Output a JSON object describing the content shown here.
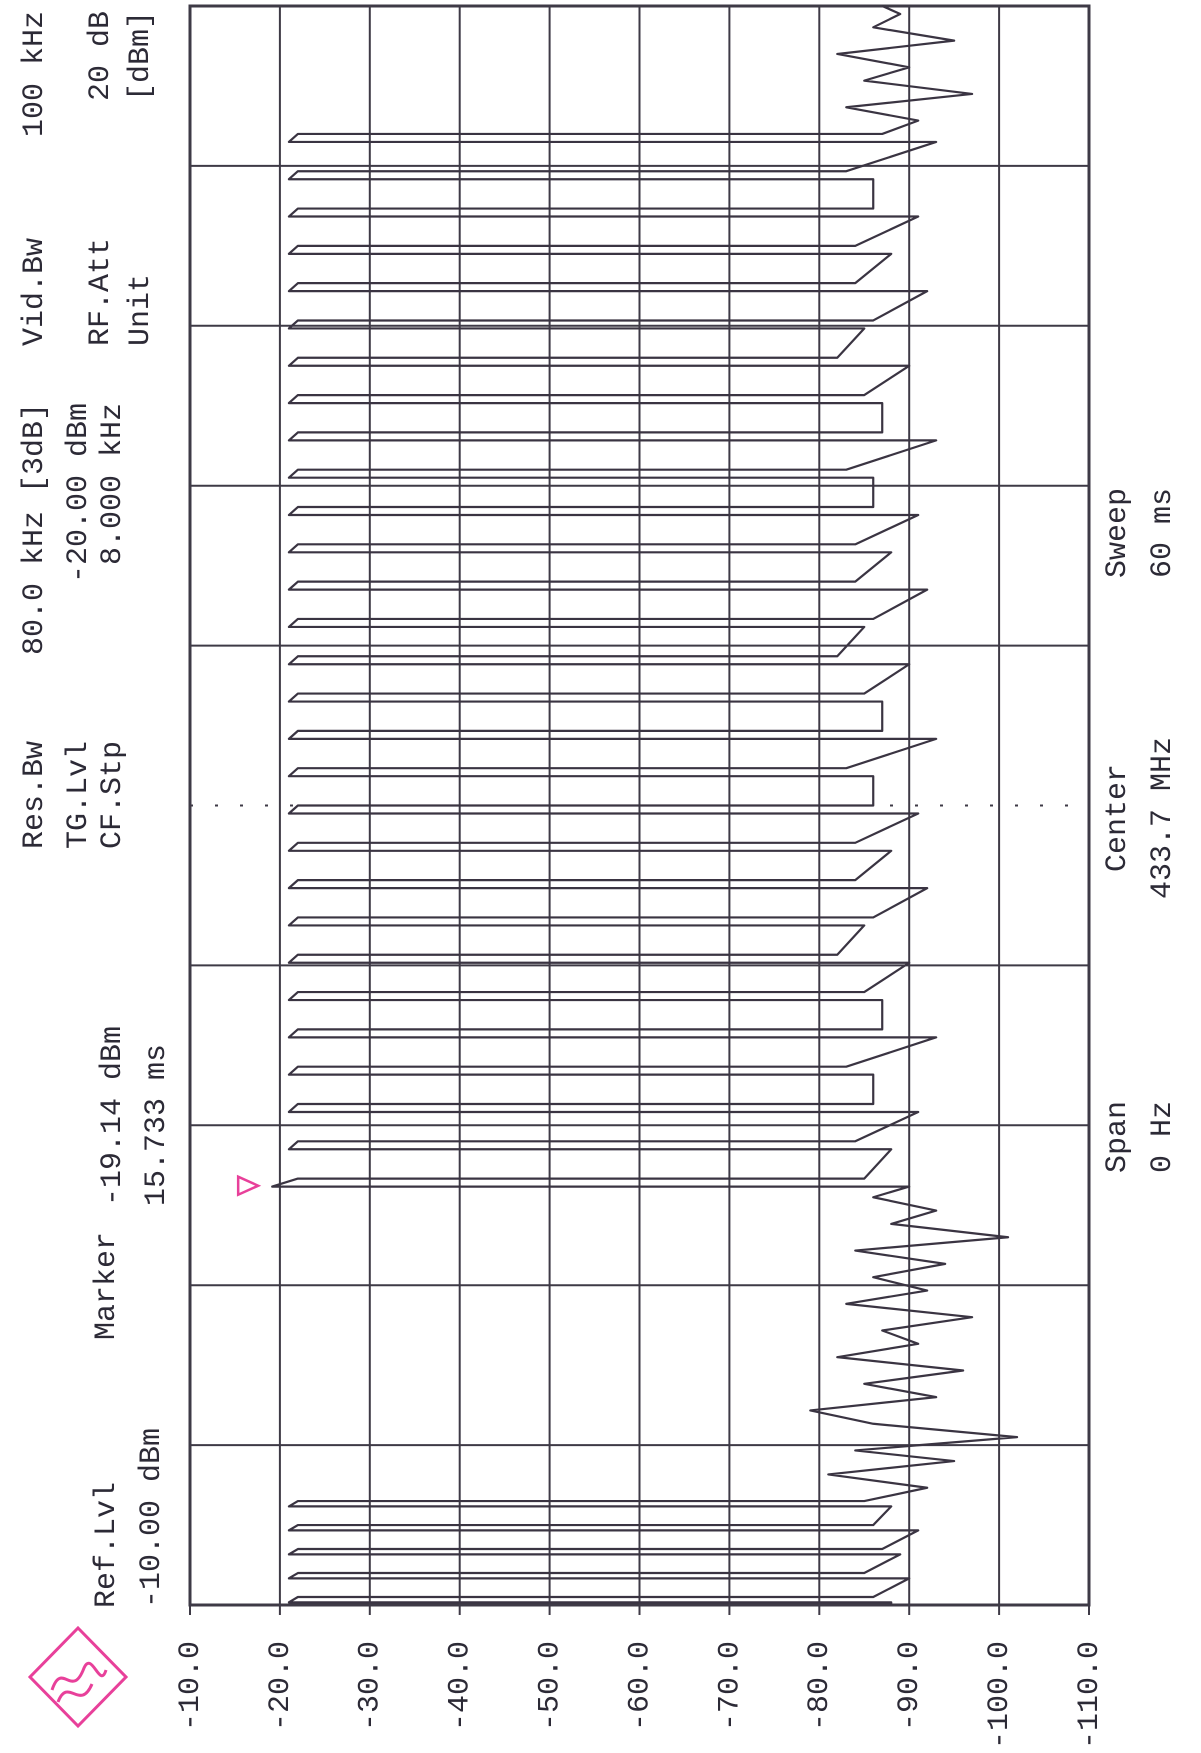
{
  "chart_data": {
    "type": "line",
    "header": {
      "ref_lvl": {
        "label": "Ref.Lvl",
        "value": "-10.00 dBm"
      },
      "marker": {
        "label": "Marker"
      },
      "res_bw": {
        "label": "Res.Bw",
        "value": "80.0 kHz [3dB]"
      },
      "tg_lvl": {
        "label": "TG.Lvl",
        "value": "-20.00 dBm"
      },
      "cf_stp": {
        "label": "CF.Stp",
        "value": "8.000 kHz"
      },
      "vid_bw": {
        "label": "Vid.Bw",
        "value": "100 kHz"
      },
      "rf_att": {
        "label": "RF.Att",
        "value": "20 dB"
      },
      "unit": {
        "label": "Unit",
        "value": "[dBm]"
      }
    },
    "footer": {
      "span": {
        "label": "Span",
        "value": "0 Hz"
      },
      "center": {
        "label": "Center",
        "value": "433.7 MHz"
      },
      "sweep": {
        "label": "Sweep",
        "value": "60 ms"
      }
    },
    "marker": {
      "x": 15.733,
      "value": -19.14,
      "x_label": "15.733 ms",
      "value_label": "-19.14 dBm",
      "color": "#e8409a"
    },
    "color": "#3a3442",
    "xlim": [
      0,
      60
    ],
    "xticks": [
      0,
      6,
      12,
      18,
      24,
      30,
      36,
      42,
      48,
      54,
      60
    ],
    "ylim": [
      -110,
      -10
    ],
    "yticks": [
      {
        "value": -10,
        "label": "-10.0"
      },
      {
        "value": -20,
        "label": "-20.0"
      },
      {
        "value": -30,
        "label": "-30.0"
      },
      {
        "value": -40,
        "label": "-40.0"
      },
      {
        "value": -50,
        "label": "-50.0"
      },
      {
        "value": -60,
        "label": "-60.0"
      },
      {
        "value": -70,
        "label": "-70.0"
      },
      {
        "value": -80,
        "label": "-80.0"
      },
      {
        "value": -90,
        "label": "-90.0"
      },
      {
        "value": -100,
        "label": "-100.0"
      },
      {
        "value": -110,
        "label": "-110.0"
      }
    ],
    "grid": true,
    "x": [
      0,
      0.1,
      0.1,
      0.3,
      0.3,
      1.0,
      1.0,
      1.2,
      1.2,
      1.9,
      1.9,
      2.1,
      2.1,
      2.8,
      2.8,
      3.0,
      3.0,
      3.7,
      3.7,
      3.9,
      3.9,
      4.4,
      4.9,
      5.4,
      5.8,
      6.3,
      6.8,
      7.3,
      7.8,
      8.3,
      8.8,
      9.3,
      9.8,
      10.3,
      10.8,
      11.3,
      11.8,
      12.3,
      12.8,
      13.3,
      13.8,
      14.3,
      14.8,
      15.3,
      15.7,
      15.7,
      16.0,
      16.0,
      17.1,
      17.1,
      17.4,
      17.4,
      18.5,
      18.5,
      18.8,
      18.8,
      19.9,
      19.9,
      20.2,
      20.2,
      21.3,
      21.3,
      21.6,
      21.6,
      22.7,
      22.7,
      23.0,
      23.0,
      24.1,
      24.1,
      24.4,
      24.4,
      25.5,
      25.5,
      25.8,
      25.8,
      26.9,
      26.9,
      27.2,
      27.2,
      28.3,
      28.3,
      28.6,
      28.6,
      29.7,
      29.7,
      30.0,
      30.0,
      31.1,
      31.1,
      31.4,
      31.4,
      32.5,
      32.5,
      32.8,
      32.8,
      33.9,
      33.9,
      34.2,
      34.2,
      35.3,
      35.3,
      35.6,
      35.6,
      36.7,
      36.7,
      37.0,
      37.0,
      38.1,
      38.1,
      38.4,
      38.4,
      39.5,
      39.5,
      39.8,
      39.8,
      40.9,
      40.9,
      41.2,
      41.2,
      42.3,
      42.3,
      42.6,
      42.6,
      43.7,
      43.7,
      44.0,
      44.0,
      45.1,
      45.1,
      45.4,
      45.4,
      46.5,
      46.5,
      46.8,
      46.8,
      47.9,
      47.9,
      48.2,
      48.2,
      49.3,
      49.3,
      49.6,
      49.6,
      50.7,
      50.7,
      51.0,
      51.0,
      52.1,
      52.1,
      52.4,
      52.4,
      53.5,
      53.5,
      53.8,
      53.8,
      54.9,
      54.9,
      55.2,
      55.2,
      55.7,
      56.2,
      56.7,
      57.2,
      57.7,
      58.2,
      58.7,
      59.2,
      59.7,
      60
    ],
    "values": [
      -88,
      -88,
      -21,
      -22,
      -86,
      -90,
      -21,
      -22,
      -85,
      -89,
      -21,
      -22,
      -87,
      -91,
      -21,
      -22,
      -86,
      -88,
      -21,
      -22,
      -85,
      -92,
      -81,
      -95,
      -84,
      -102,
      -86,
      -79,
      -93,
      -85,
      -96,
      -82,
      -91,
      -87,
      -97,
      -83,
      -92,
      -86,
      -94,
      -84,
      -101,
      -88,
      -93,
      -86,
      -90,
      -19.14,
      -22,
      -85,
      -88,
      -21,
      -22,
      -84,
      -91,
      -21,
      -22,
      -86,
      -86,
      -21,
      -22,
      -83,
      -93,
      -21,
      -22,
      -87,
      -87,
      -21,
      -22,
      -85,
      -90,
      -21,
      -22,
      -82,
      -85,
      -21,
      -22,
      -86,
      -92,
      -21,
      -22,
      -84,
      -88,
      -21,
      -22,
      -84,
      -91,
      -21,
      -22,
      -86,
      -86,
      -21,
      -22,
      -83,
      -93,
      -21,
      -22,
      -87,
      -87,
      -21,
      -22,
      -85,
      -90,
      -21,
      -22,
      -82,
      -85,
      -21,
      -22,
      -86,
      -92,
      -21,
      -22,
      -84,
      -88,
      -21,
      -22,
      -84,
      -91,
      -21,
      -22,
      -86,
      -86,
      -21,
      -22,
      -83,
      -93,
      -21,
      -22,
      -87,
      -87,
      -21,
      -22,
      -85,
      -90,
      -21,
      -22,
      -82,
      -85,
      -21,
      -22,
      -86,
      -92,
      -21,
      -22,
      -84,
      -88,
      -21,
      -22,
      -84,
      -91,
      -21,
      -22,
      -86,
      -86,
      -21,
      -22,
      -83,
      -93,
      -21,
      -22,
      -87,
      -91,
      -83,
      -97,
      -85,
      -90,
      -82,
      -95,
      -86,
      -89,
      -87
    ]
  }
}
